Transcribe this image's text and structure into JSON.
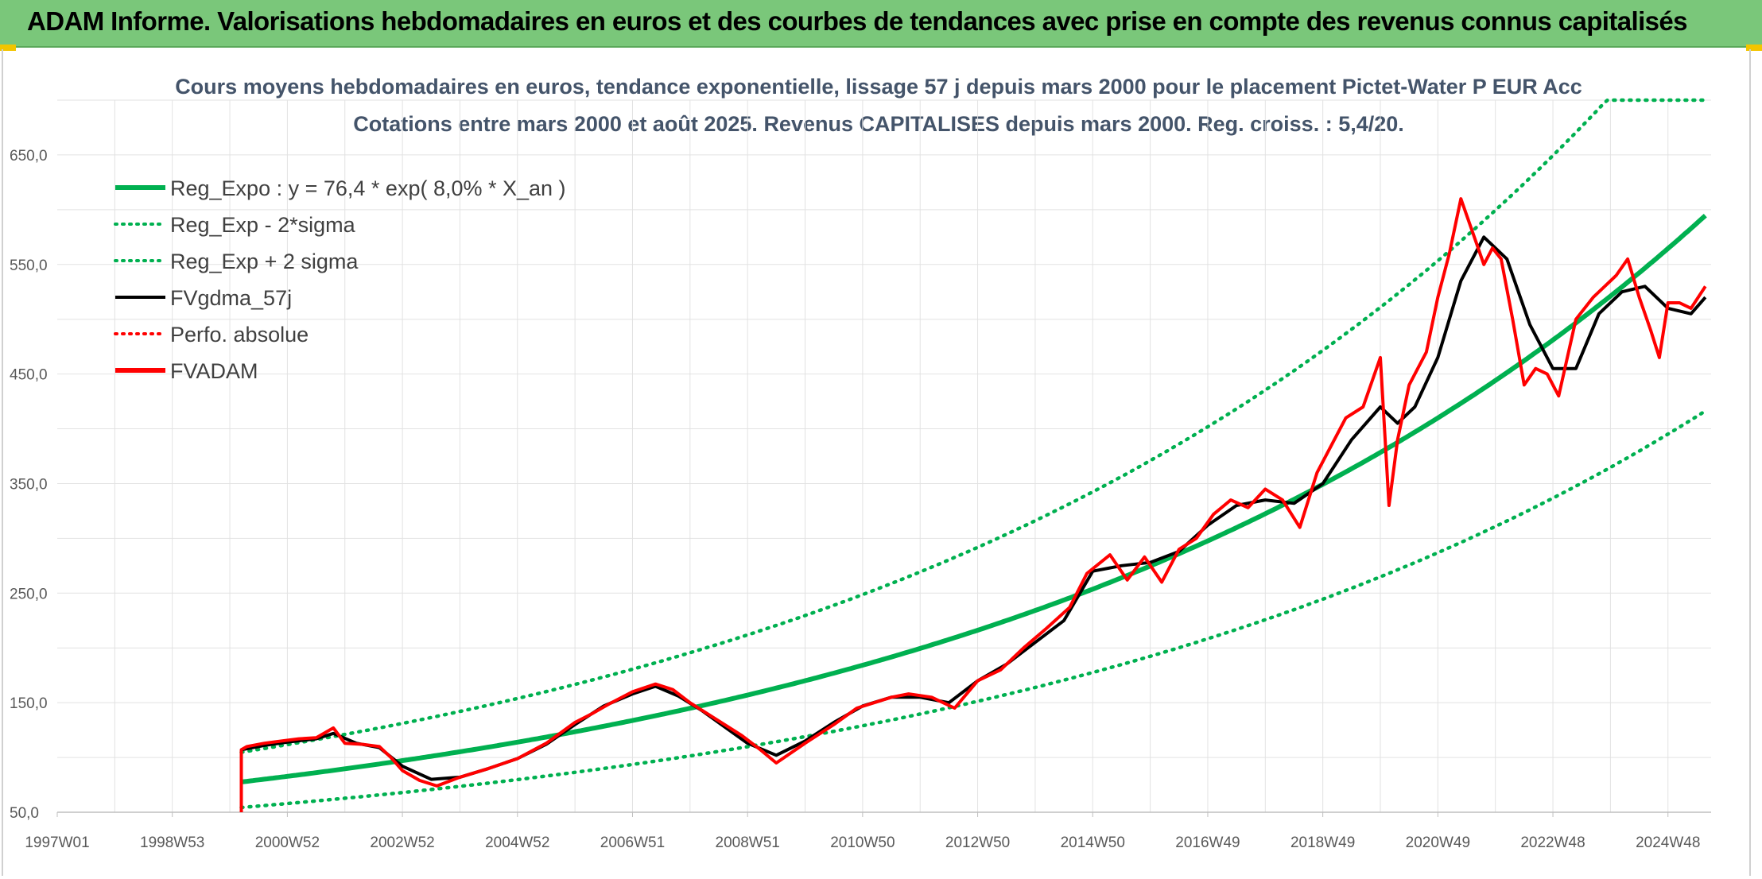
{
  "banner": {
    "title": "ADAM Informe. Valorisations hebdomadaires en euros et des courbes de tendances avec prise en compte des revenus connus capitalisés"
  },
  "colors": {
    "banner_bg": "#7ac77a",
    "trend_green": "#00b050",
    "price_red": "#ff0000",
    "moving_average": "#000000"
  },
  "chart_data": {
    "type": "line",
    "title": "Cours moyens hebdomadaires en euros, tendance exponentielle, lissage 57 j depuis mars 2000 pour le placement Pictet-Water P EUR Acc",
    "subtitle": "Cotations entre mars 2000 et août 2025. Revenus CAPITALISES depuis mars 2000. Reg. croiss. : 5,4/20.",
    "xlabel": "",
    "ylabel": "",
    "x_tick_labels": [
      "1997W01",
      "1998W53",
      "2000W52",
      "2002W52",
      "2004W52",
      "2006W51",
      "2008W51",
      "2010W50",
      "2012W50",
      "2014W50",
      "2016W49",
      "2018W49",
      "2020W49",
      "2022W48",
      "2024W48"
    ],
    "x_tick_years": [
      1997.0,
      1999.0,
      2001.0,
      2003.0,
      2005.0,
      2007.0,
      2009.0,
      2011.0,
      2013.0,
      2015.0,
      2017.0,
      2019.0,
      2021.0,
      2023.0,
      2025.0
    ],
    "xlim": [
      1997.0,
      2025.75
    ],
    "y_tick_labels": [
      "50,0",
      "150,0",
      "250,0",
      "350,0",
      "450,0",
      "550,0",
      "650,0"
    ],
    "y_ticks": [
      50,
      150,
      250,
      350,
      450,
      550,
      650
    ],
    "ylim": [
      50,
      700
    ],
    "grid": true,
    "legend_position": "top-left",
    "legend": [
      {
        "label": "Reg_Expo : y = 76,4 * exp( 8,0% *  X_an )",
        "style": "solid-thick",
        "color": "#00b050"
      },
      {
        "label": "Reg_Exp - 2*sigma",
        "style": "dotted",
        "color": "#00b050"
      },
      {
        "label": "Reg_Exp + 2 sigma",
        "style": "dotted",
        "color": "#00b050"
      },
      {
        "label": "FVgdma_57j",
        "style": "solid",
        "color": "#000000"
      },
      {
        "label": "Perfo. absolue",
        "style": "dotted",
        "color": "#ff0000"
      },
      {
        "label": "FVADAM",
        "style": "solid-thick",
        "color": "#ff0000"
      }
    ],
    "regression": {
      "a": 76.4,
      "rate": 0.08,
      "start_year": 2000.2,
      "end_year": 2025.65,
      "lower_factor": 0.7,
      "upper_factor": 1.35,
      "upper_cap": 700
    },
    "series": [
      {
        "name": "FVADAM",
        "x": [
          2000.2,
          2000.2,
          2000.3,
          2000.6,
          2000.9,
          2001.2,
          2001.5,
          2001.8,
          2002.0,
          2002.3,
          2002.6,
          2002.8,
          2003.0,
          2003.3,
          2003.6,
          2004.0,
          2004.5,
          2005.0,
          2005.5,
          2006.0,
          2006.3,
          2006.6,
          2007.0,
          2007.4,
          2007.7,
          2008.0,
          2008.3,
          2008.6,
          2008.9,
          2009.2,
          2009.5,
          2010.0,
          2010.5,
          2010.9,
          2011.2,
          2011.5,
          2011.8,
          2012.2,
          2012.6,
          2013.0,
          2013.4,
          2013.8,
          2014.2,
          2014.6,
          2014.9,
          2015.3,
          2015.6,
          2015.9,
          2016.2,
          2016.5,
          2016.8,
          2017.1,
          2017.4,
          2017.7,
          2018.0,
          2018.3,
          2018.6,
          2018.9,
          2019.1,
          2019.4,
          2019.7,
          2020.0,
          2020.15,
          2020.3,
          2020.5,
          2020.8,
          2021.0,
          2021.2,
          2021.4,
          2021.6,
          2021.8,
          2021.95,
          2022.1,
          2022.3,
          2022.5,
          2022.7,
          2022.9,
          2023.1,
          2023.4,
          2023.7,
          2023.9,
          2024.1,
          2024.3,
          2024.5,
          2024.7,
          2024.85,
          2025.0,
          2025.2,
          2025.4,
          2025.65
        ],
        "y": [
          50,
          107,
          110,
          113,
          115,
          117,
          118,
          127,
          113,
          112,
          110,
          100,
          88,
          79,
          74,
          82,
          90,
          99,
          113,
          132,
          140,
          149,
          160,
          167,
          162,
          150,
          140,
          130,
          120,
          108,
          95,
          113,
          130,
          145,
          150,
          155,
          158,
          155,
          145,
          170,
          180,
          200,
          218,
          237,
          268,
          285,
          262,
          283,
          260,
          290,
          300,
          322,
          335,
          328,
          345,
          335,
          310,
          360,
          380,
          410,
          420,
          465,
          330,
          390,
          440,
          470,
          520,
          560,
          610,
          580,
          550,
          565,
          555,
          500,
          440,
          455,
          450,
          430,
          500,
          520,
          530,
          540,
          555,
          520,
          490,
          465,
          515,
          515,
          510,
          530
        ]
      },
      {
        "name": "FVgdma_57j",
        "x": [
          2000.2,
          2000.6,
          2001.0,
          2001.5,
          2001.8,
          2002.2,
          2002.6,
          2003.0,
          2003.5,
          2004.0,
          2004.5,
          2005.0,
          2005.5,
          2006.0,
          2006.5,
          2007.0,
          2007.4,
          2007.8,
          2008.2,
          2008.6,
          2009.0,
          2009.5,
          2010.0,
          2010.5,
          2011.0,
          2011.5,
          2012.0,
          2012.5,
          2013.0,
          2013.5,
          2014.0,
          2014.5,
          2015.0,
          2015.5,
          2016.0,
          2016.5,
          2017.0,
          2017.5,
          2018.0,
          2018.5,
          2019.0,
          2019.5,
          2020.0,
          2020.3,
          2020.6,
          2021.0,
          2021.4,
          2021.8,
          2022.2,
          2022.6,
          2023.0,
          2023.4,
          2023.8,
          2024.2,
          2024.6,
          2025.0,
          2025.4,
          2025.65
        ],
        "y": [
          107,
          111,
          114,
          117,
          122,
          113,
          109,
          92,
          80,
          82,
          90,
          99,
          112,
          130,
          147,
          158,
          165,
          156,
          143,
          128,
          113,
          102,
          115,
          132,
          147,
          155,
          155,
          150,
          170,
          185,
          205,
          225,
          270,
          275,
          278,
          288,
          312,
          330,
          335,
          332,
          350,
          390,
          420,
          405,
          420,
          465,
          535,
          575,
          555,
          495,
          455,
          455,
          505,
          525,
          530,
          510,
          505,
          520
        ]
      }
    ]
  }
}
